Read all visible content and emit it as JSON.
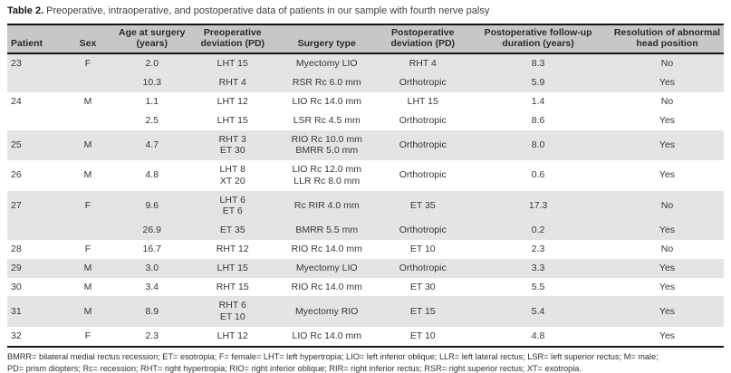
{
  "caption": {
    "label": "Table 2.",
    "text": "Preoperative, intraoperative, and postoperative data of patients in our sample with fourth nerve palsy"
  },
  "colors": {
    "header_bg": "#c6c7c8",
    "row_stripe": "#e4e4e5",
    "rule": "#141414",
    "text": "#373737"
  },
  "table": {
    "headers": [
      "Patient",
      "Sex",
      "Age at surgery\n(years)",
      "Preoperative\ndeviation (PD)",
      "Surgery type",
      "Postoperative\ndeviation (PD)",
      "Postoperative follow-up\nduration (years)",
      "Resolution of abnormal\nhead position"
    ],
    "rows": [
      {
        "shade": "gray",
        "cells": [
          "23",
          "F",
          "2.0",
          "LHT 15",
          "Myectomy LIO",
          "RHT 4",
          "8.3",
          "No"
        ]
      },
      {
        "shade": "gray",
        "cells": [
          "",
          "",
          "10.3",
          "RHT 4",
          "RSR Rc 6.0 mm",
          "Orthotropic",
          "5.9",
          "Yes"
        ]
      },
      {
        "shade": "white",
        "cells": [
          "24",
          "M",
          "1.1",
          "LHT 12",
          "LIO Rc 14.0 mm",
          "LHT 15",
          "1.4",
          "No"
        ]
      },
      {
        "shade": "white",
        "cells": [
          "",
          "",
          "2.5",
          "LHT 15",
          "LSR Rc 4.5 mm",
          "Orthotropic",
          "8.6",
          "Yes"
        ]
      },
      {
        "shade": "gray",
        "cells": [
          "25",
          "M",
          "4.7",
          "RHT 3\nET 30",
          "RIO Rc 10.0 mm\nBMRR 5.0 mm",
          "Orthotropic",
          "8.0",
          "Yes"
        ]
      },
      {
        "shade": "white",
        "cells": [
          "26",
          "M",
          "4.8",
          "LHT 8\nXT 20",
          "LIO Rc 12.0 mm\nLLR Rc 8.0 mm",
          "Orthotropic",
          "0.6",
          "Yes"
        ]
      },
      {
        "shade": "gray",
        "cells": [
          "27",
          "F",
          "9.6",
          "LHT 6\nET 6",
          "Rc RIR 4.0 mm",
          "ET 35",
          "17.3",
          "No"
        ]
      },
      {
        "shade": "gray",
        "cells": [
          "",
          "",
          "26.9",
          "ET 35",
          "BMRR 5.5 mm",
          "Orthotropic",
          "0.2",
          "Yes"
        ]
      },
      {
        "shade": "white",
        "cells": [
          "28",
          "F",
          "16.7",
          "RHT 12",
          "RIO Rc 14.0 mm",
          "ET 10",
          "2.3",
          "No"
        ]
      },
      {
        "shade": "gray",
        "cells": [
          "29",
          "M",
          "3.0",
          "LHT 15",
          "Myectomy LIO",
          "Orthotropic",
          "3.3",
          "Yes"
        ]
      },
      {
        "shade": "white",
        "cells": [
          "30",
          "M",
          "3.4",
          "RHT 15",
          "RIO Rc 14.0 mm",
          "ET 30",
          "5.5",
          "Yes"
        ]
      },
      {
        "shade": "gray",
        "cells": [
          "31",
          "M",
          "8.9",
          "RHT 6\nET 10",
          "Myectomy RIO",
          "ET 15",
          "5.4",
          "Yes"
        ]
      },
      {
        "shade": "white",
        "cells": [
          "32",
          "F",
          "2.3",
          "LHT 12",
          "LIO Rc 14.0 mm",
          "ET 10",
          "4.8",
          "Yes"
        ]
      }
    ]
  },
  "footnote": {
    "lines": [
      "BMRR= bilateral medial rectus recession; ET= esotropia; F= female= LHT= left hypertropia; LIO= left inferior oblique; LLR= left lateral rectus; LSR= left superior rectus; M= male;",
      "PD= prism diopters; Rc= recession; RHT= right hypertropia; RIO= right inferior oblique; RIR= right inferior rectus; RSR= right superior rectus; XT= exotropia."
    ]
  }
}
